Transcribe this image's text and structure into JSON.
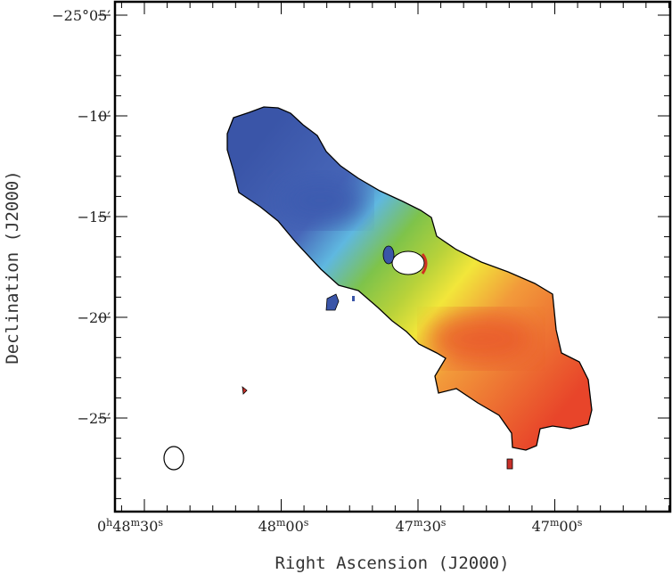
{
  "chart_data": {
    "type": "heatmap",
    "title": "",
    "xlabel": "Right Ascension (J2000)",
    "ylabel": "Declination (J2000)",
    "x_ticks": [
      {
        "main": "0",
        "sup1": "h",
        "mid": "48",
        "sup2": "m",
        "end": "30",
        "sup3": "s"
      },
      {
        "main": "",
        "sup1": "",
        "mid": "48",
        "sup2": "m",
        "end": "00",
        "sup3": "s"
      },
      {
        "main": "",
        "sup1": "",
        "mid": "47",
        "sup2": "m",
        "end": "30",
        "sup3": "s"
      },
      {
        "main": "",
        "sup1": "",
        "mid": "47",
        "sup2": "m",
        "end": "00",
        "sup3": "s"
      }
    ],
    "y_ticks": [
      "−25°05′",
      "−10′",
      "−15′",
      "−20′",
      "−25′"
    ],
    "colormap": [
      "#3a55a8",
      "#5fb8e0",
      "#7ec34a",
      "#f2e63a",
      "#f29a3a",
      "#e8452a"
    ],
    "outline_color": "#000000",
    "grid": false
  }
}
